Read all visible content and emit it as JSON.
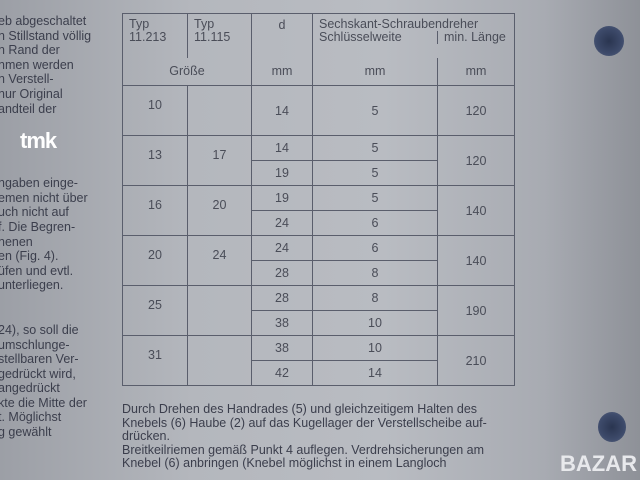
{
  "watermarks": {
    "top_left": "tmk",
    "bottom_right": "BAZAR"
  },
  "left_text": {
    "p1": [
      "eb abgeschaltet",
      "n Stillstand völlig",
      "n Rand der",
      "nmen werden",
      "n Verstell-",
      "nur Original",
      "andteil der"
    ],
    "p2": [
      "ngaben einge-",
      "emen nicht über",
      "uch nicht auf",
      "f. Die Begren-",
      "nenen",
      "en (Fig. 4).",
      "üfen und evtl.",
      "unterliegen."
    ],
    "p3": [
      "24), so soll die",
      "umschlunge-",
      "stellbaren Ver-",
      "gedrückt wird,",
      "angedrückt",
      "kte die Mitte der",
      "t. Möglichst",
      "g gewählt"
    ]
  },
  "table": {
    "header": {
      "typ1": "Typ",
      "typ1_num": "11.213",
      "typ2": "Typ",
      "typ2_num": "11.115",
      "d": "d",
      "screwdriver": "Sechskant-Schraubendreher",
      "key_width": "Schlüsselweite",
      "min_length": "min. Länge",
      "size": "Größe",
      "unit_d": "mm",
      "unit_kw": "mm",
      "unit_len": "mm"
    },
    "groups": [
      {
        "size_11213": "10",
        "size_11115": "",
        "rows": [
          {
            "d": "14",
            "kw": "5"
          }
        ],
        "length": "120"
      },
      {
        "size_11213": "13",
        "size_11115": "17",
        "rows": [
          {
            "d": "14",
            "kw": "5"
          },
          {
            "d": "19",
            "kw": "5"
          }
        ],
        "length": "120"
      },
      {
        "size_11213": "16",
        "size_11115": "20",
        "rows": [
          {
            "d": "19",
            "kw": "5"
          },
          {
            "d": "24",
            "kw": "6"
          }
        ],
        "length": "140"
      },
      {
        "size_11213": "20",
        "size_11115": "24",
        "rows": [
          {
            "d": "24",
            "kw": "6"
          },
          {
            "d": "28",
            "kw": "8"
          }
        ],
        "length": "140"
      },
      {
        "size_11213": "25",
        "size_11115": "",
        "rows": [
          {
            "d": "28",
            "kw": "8"
          },
          {
            "d": "38",
            "kw": "10"
          }
        ],
        "length": "190"
      },
      {
        "size_11213": "31",
        "size_11115": "",
        "rows": [
          {
            "d": "38",
            "kw": "10"
          },
          {
            "d": "42",
            "kw": "14"
          }
        ],
        "length": "210"
      }
    ]
  },
  "bottom_text": [
    "Durch Drehen des Handrades (5) und gleichzeitigem Halten des",
    "Knebels (6) Haube (2) auf das Kugellager der Verstellscheibe auf-",
    "drücken.",
    "Breitkeilriemen gemäß Punkt 4 auflegen. Verdrehsicherungen am",
    "Knebel (6) anbringen (Knebel möglichst in einem Langloch"
  ]
}
